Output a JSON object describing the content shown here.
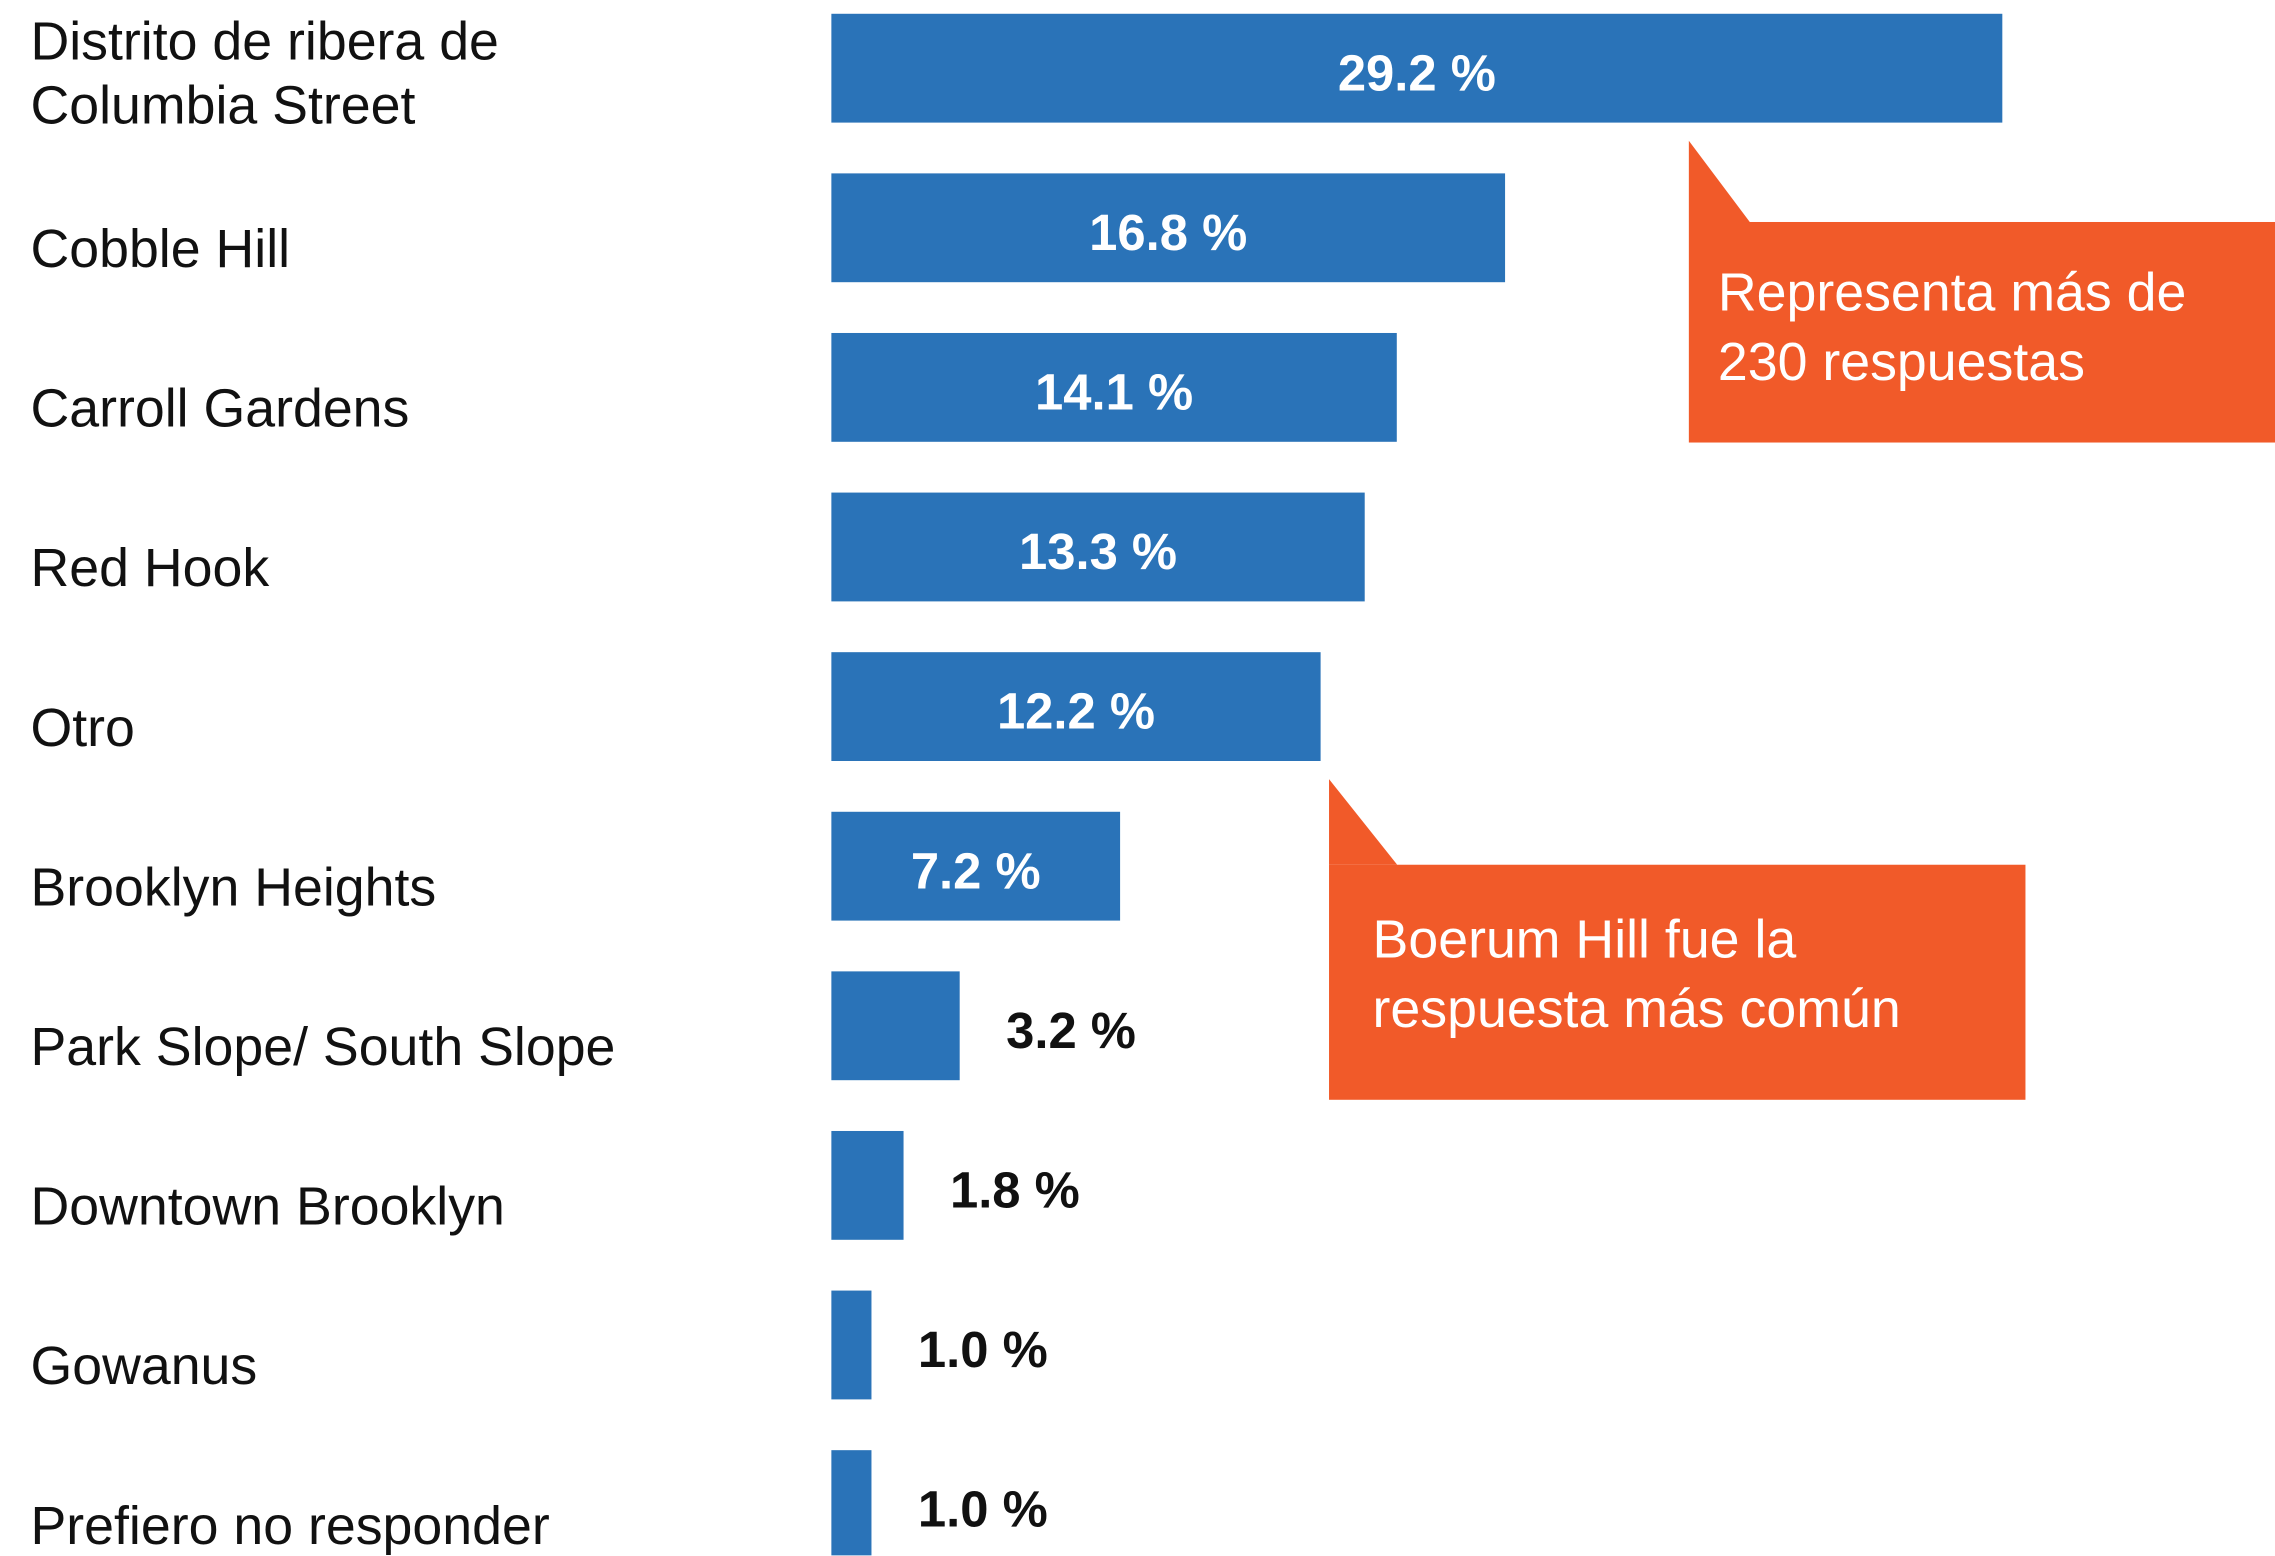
{
  "chart_data": {
    "type": "bar",
    "orientation": "horizontal",
    "categories": [
      "Distrito de ribera de\nColumbia Street",
      "Cobble Hill",
      "Carroll Gardens",
      "Red Hook",
      "Otro",
      "Brooklyn Heights",
      "Park Slope/ South Slope",
      "Downtown Brooklyn",
      "Gowanus",
      "Prefiero no responder"
    ],
    "values": [
      29.2,
      16.8,
      14.1,
      13.3,
      12.2,
      7.2,
      3.2,
      1.8,
      1.0,
      1.0
    ],
    "value_labels": [
      "29.2 %",
      "16.8 %",
      "14.1 %",
      "13.3 %",
      "12.2 %",
      "7.2 %",
      "3.2 %",
      "1.8 %",
      "1.0 %",
      "1.0 %"
    ],
    "color": "#2a73b8",
    "xlim": [
      0,
      36
    ],
    "annotations": [
      {
        "text": "Representa más de\n230 respuestas",
        "color": "#f15a29"
      },
      {
        "text": "Boerum Hill fue la\nrespuesta más común",
        "color": "#f15a29"
      }
    ]
  }
}
